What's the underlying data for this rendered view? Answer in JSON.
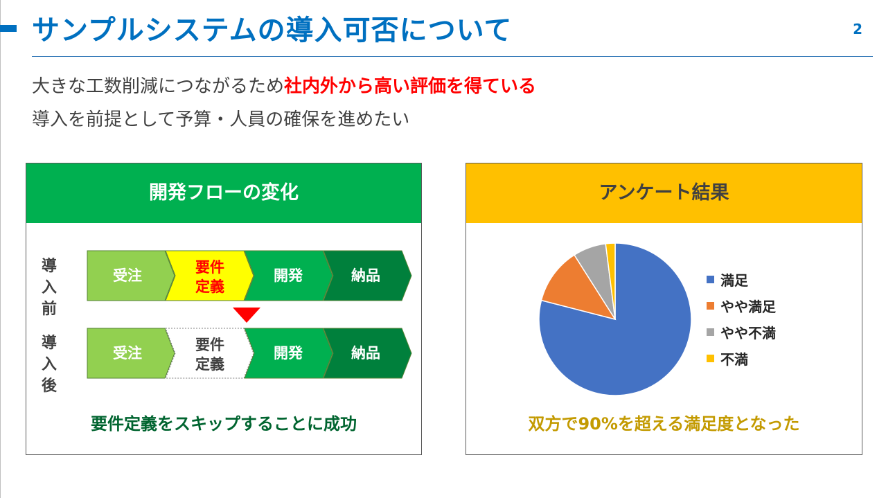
{
  "slide": {
    "title": "サンプルシステムの導入可否について",
    "page_number": "2",
    "lead_line1_prefix": "大きな工数削減につながるため",
    "lead_line1_highlight": "社内外から高い評価を得ている",
    "lead_line2": "導入を前提として予算・人員の確保を進めたい"
  },
  "left_panel": {
    "header": "開発フローの変化",
    "before_label_1": "導入",
    "before_label_2": "前",
    "after_label_1": "導入",
    "after_label_2": "後",
    "caption": "要件定義をスキップすることに成功",
    "steps": [
      {
        "label_1": "受注",
        "label_2": ""
      },
      {
        "label_1": "要件",
        "label_2": "定義"
      },
      {
        "label_1": "開発",
        "label_2": ""
      },
      {
        "label_1": "納品",
        "label_2": ""
      }
    ],
    "colors": {
      "step_order": "#92d050",
      "step_requirements_before": "#ffff00",
      "step_develop": "#00b050",
      "step_deliver": "#00803c",
      "step_requirements_after": "#ffffff",
      "arrow": "#ff0000"
    }
  },
  "right_panel": {
    "header": "アンケート結果",
    "caption": "双方で90%を超える満足度となった"
  },
  "chart_data": {
    "type": "pie",
    "title": "",
    "categories": [
      "満足",
      "やや満足",
      "やや不満",
      "不満"
    ],
    "values": [
      79,
      12,
      7,
      2
    ],
    "colors": [
      "#4472c4",
      "#ed7d31",
      "#a5a5a5",
      "#ffc000"
    ],
    "legend": "right"
  }
}
